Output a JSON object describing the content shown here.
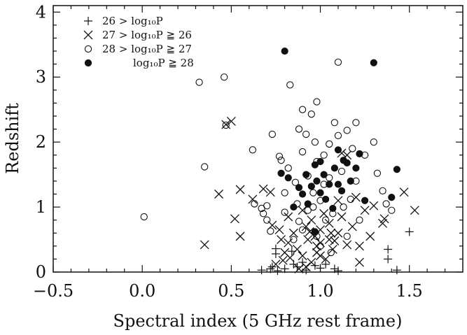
{
  "chart_data": {
    "type": "scatter",
    "xlabel": "Spectral index (5 GHz rest frame)",
    "ylabel": "Redshift",
    "xlim": [
      -0.5,
      1.8
    ],
    "ylim": [
      0,
      4.1
    ],
    "xticks": [
      -0.5,
      0.0,
      0.5,
      1.0,
      1.5
    ],
    "xtick_labels": [
      "−0.5",
      "0.0",
      "0.5",
      "1.0",
      "1.5"
    ],
    "yticks": [
      0,
      1,
      2,
      3,
      4
    ],
    "ytick_labels": [
      "0",
      "1",
      "2",
      "3",
      "4"
    ],
    "legend_position": "top-left",
    "series": [
      {
        "name": "26 > log10P",
        "legend_text": "26  >  log₁₀P",
        "marker": "plus",
        "points": [
          [
            0.67,
            0.03
          ],
          [
            0.72,
            0.05
          ],
          [
            0.73,
            0.08
          ],
          [
            0.76,
            0.02
          ],
          [
            0.8,
            0.05
          ],
          [
            0.85,
            0.12
          ],
          [
            0.87,
            0.08
          ],
          [
            0.9,
            0.15
          ],
          [
            0.92,
            0.03
          ],
          [
            0.97,
            0.1
          ],
          [
            1.0,
            0.06
          ],
          [
            1.03,
            0.12
          ],
          [
            1.08,
            0.05
          ],
          [
            1.1,
            0.02
          ],
          [
            0.75,
            0.36
          ],
          [
            0.75,
            0.28
          ],
          [
            1.38,
            0.35
          ],
          [
            1.38,
            0.2
          ],
          [
            1.43,
            0.03
          ],
          [
            1.5,
            0.62
          ],
          [
            0.84,
            0.32
          ]
        ]
      },
      {
        "name": "27 > log10P >= 26",
        "legend_text": "27  >  log₁₀P  ≧  26",
        "marker": "x",
        "points": [
          [
            0.5,
            2.32
          ],
          [
            0.47,
            2.27
          ],
          [
            0.43,
            1.2
          ],
          [
            0.55,
            1.27
          ],
          [
            0.52,
            0.82
          ],
          [
            0.55,
            0.55
          ],
          [
            0.35,
            0.42
          ],
          [
            0.62,
            1.12
          ],
          [
            0.68,
            1.28
          ],
          [
            0.72,
            1.23
          ],
          [
            0.73,
            0.72
          ],
          [
            0.77,
            0.65
          ],
          [
            0.78,
            0.5
          ],
          [
            0.8,
            0.3
          ],
          [
            0.82,
            0.85
          ],
          [
            0.82,
            0.45
          ],
          [
            0.85,
            0.6
          ],
          [
            0.87,
            0.35
          ],
          [
            0.9,
            0.95
          ],
          [
            0.9,
            0.25
          ],
          [
            0.92,
            0.7
          ],
          [
            0.93,
            0.5
          ],
          [
            0.95,
            0.15
          ],
          [
            0.95,
            0.8
          ],
          [
            0.97,
            0.55
          ],
          [
            0.98,
            0.3
          ],
          [
            1.0,
            0.65
          ],
          [
            1.0,
            0.45
          ],
          [
            1.02,
            0.9
          ],
          [
            1.03,
            0.2
          ],
          [
            1.05,
            0.5
          ],
          [
            1.05,
            0.75
          ],
          [
            1.07,
            0.35
          ],
          [
            1.1,
            0.6
          ],
          [
            1.1,
            1.1
          ],
          [
            1.12,
            0.85
          ],
          [
            1.12,
            1.83
          ],
          [
            1.15,
            1.8
          ],
          [
            1.18,
            0.7
          ],
          [
            1.2,
            1.15
          ],
          [
            1.22,
            0.4
          ],
          [
            1.22,
            0.15
          ],
          [
            1.25,
            0.95
          ],
          [
            1.28,
            0.55
          ],
          [
            1.3,
            1.02
          ],
          [
            1.35,
            0.75
          ],
          [
            1.36,
            0.82
          ],
          [
            1.47,
            1.23
          ],
          [
            1.53,
            0.95
          ],
          [
            0.75,
            0.12
          ],
          [
            0.88,
            0.05
          ],
          [
            0.83,
            0.22
          ],
          [
            0.98,
            0.4
          ],
          [
            1.06,
            0.6
          ],
          [
            0.92,
            0.08
          ],
          [
            1.15,
            0.42
          ],
          [
            1.0,
            0.25
          ],
          [
            0.79,
            0.18
          ],
          [
            0.94,
            0.62
          ],
          [
            1.08,
            0.48
          ]
        ]
      },
      {
        "name": "28 > log10P >= 27",
        "legend_text": "28  >  log₁₀P  ≧  27",
        "marker": "circle-open",
        "points": [
          [
            0.01,
            0.85
          ],
          [
            0.32,
            2.92
          ],
          [
            0.35,
            1.62
          ],
          [
            0.46,
            3.0
          ],
          [
            0.47,
            2.26
          ],
          [
            0.62,
            1.88
          ],
          [
            0.63,
            1.05
          ],
          [
            0.67,
            0.98
          ],
          [
            0.68,
            0.9
          ],
          [
            0.7,
            0.8
          ],
          [
            0.7,
            1.02
          ],
          [
            0.72,
            0.63
          ],
          [
            0.73,
            2.12
          ],
          [
            0.77,
            1.78
          ],
          [
            0.78,
            1.72
          ],
          [
            0.8,
            1.22
          ],
          [
            0.8,
            0.92
          ],
          [
            0.82,
            1.6
          ],
          [
            0.83,
            2.88
          ],
          [
            0.85,
            0.5
          ],
          [
            0.86,
            1.38
          ],
          [
            0.87,
            1.05
          ],
          [
            0.88,
            2.2
          ],
          [
            0.9,
            2.5
          ],
          [
            0.9,
            1.85
          ],
          [
            0.9,
            0.65
          ],
          [
            0.92,
            2.12
          ],
          [
            0.93,
            1.48
          ],
          [
            0.93,
            0.95
          ],
          [
            0.95,
            2.43
          ],
          [
            0.96,
            1.22
          ],
          [
            0.97,
            2.0
          ],
          [
            0.98,
            2.62
          ],
          [
            0.98,
            1.7
          ],
          [
            0.98,
            0.55
          ],
          [
            1.0,
            1.1
          ],
          [
            1.0,
            0.4
          ],
          [
            1.02,
            1.8
          ],
          [
            1.02,
            1.35
          ],
          [
            1.03,
            0.8
          ],
          [
            1.05,
            1.97
          ],
          [
            1.05,
            1.45
          ],
          [
            1.06,
            0.3
          ],
          [
            1.08,
            2.3
          ],
          [
            1.1,
            2.1
          ],
          [
            1.12,
            1.55
          ],
          [
            1.13,
            1.0
          ],
          [
            1.15,
            2.18
          ],
          [
            1.15,
            0.55
          ],
          [
            1.18,
            1.9
          ],
          [
            1.2,
            2.3
          ],
          [
            1.2,
            1.4
          ],
          [
            1.22,
            0.8
          ],
          [
            1.25,
            1.8
          ],
          [
            1.3,
            2.0
          ],
          [
            1.32,
            1.52
          ],
          [
            1.35,
            1.25
          ],
          [
            1.37,
            1.05
          ],
          [
            1.4,
            0.95
          ],
          [
            1.1,
            3.23
          ],
          [
            0.96,
            1.0
          ],
          [
            1.07,
            0.9
          ],
          [
            1.17,
            1.12
          ],
          [
            0.88,
            0.78
          ]
        ]
      },
      {
        "name": "log10P >= 28",
        "legend_text": "log₁₀P  ≧  28",
        "marker": "circle-filled",
        "points": [
          [
            0.8,
            3.4
          ],
          [
            1.3,
            3.22
          ],
          [
            0.78,
            1.52
          ],
          [
            0.82,
            1.45
          ],
          [
            0.85,
            1.0
          ],
          [
            0.88,
            1.3
          ],
          [
            0.9,
            1.2
          ],
          [
            0.93,
            1.05
          ],
          [
            0.95,
            1.32
          ],
          [
            0.97,
            1.65
          ],
          [
            0.98,
            1.4
          ],
          [
            1.0,
            1.7
          ],
          [
            1.02,
            1.5
          ],
          [
            1.03,
            1.12
          ],
          [
            1.05,
            1.35
          ],
          [
            1.07,
            0.98
          ],
          [
            1.08,
            1.6
          ],
          [
            1.1,
            1.88
          ],
          [
            1.12,
            1.25
          ],
          [
            1.15,
            1.68
          ],
          [
            1.17,
            1.4
          ],
          [
            1.2,
            1.6
          ],
          [
            1.22,
            1.82
          ],
          [
            1.25,
            1.1
          ],
          [
            1.4,
            1.15
          ],
          [
            1.43,
            1.58
          ],
          [
            1.1,
            1.35
          ],
          [
            0.92,
            1.5
          ],
          [
            1.0,
            1.22
          ],
          [
            0.97,
            0.62
          ],
          [
            1.13,
            1.72
          ]
        ]
      }
    ]
  }
}
